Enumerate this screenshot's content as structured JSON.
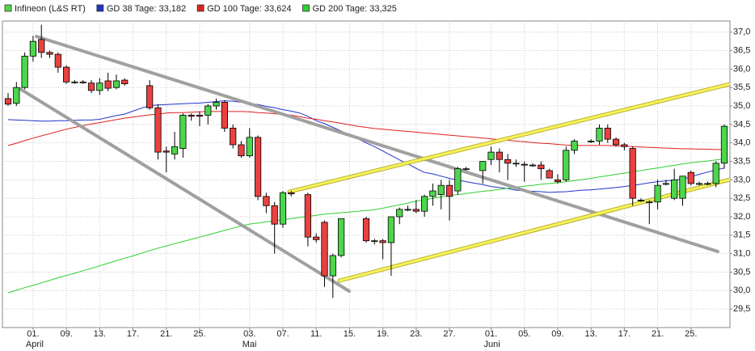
{
  "chart_data": {
    "type": "candlestick",
    "categories": [
      null,
      null,
      null,
      "01.",
      null,
      null,
      null,
      "09.",
      null,
      null,
      null,
      "13.",
      null,
      null,
      null,
      "17.",
      null,
      null,
      null,
      "21.",
      null,
      null,
      null,
      "25.",
      null,
      null,
      null,
      null,
      null,
      "03.",
      null,
      null,
      null,
      "07.",
      null,
      null,
      null,
      "11.",
      null,
      null,
      null,
      "15.",
      null,
      null,
      null,
      "19.",
      null,
      null,
      null,
      "23.",
      null,
      null,
      null,
      "27.",
      null,
      null,
      null,
      null,
      "01.",
      null,
      null,
      null,
      "05.",
      null,
      null,
      null,
      "09.",
      null,
      null,
      null,
      "13.",
      null,
      null,
      null,
      "17.",
      null,
      null,
      null,
      "21.",
      null,
      null,
      null,
      "25.",
      null,
      null,
      null,
      null
    ],
    "month_labels": [
      null,
      null,
      null,
      "April",
      null,
      null,
      null,
      null,
      null,
      null,
      null,
      null,
      null,
      null,
      null,
      null,
      null,
      null,
      null,
      null,
      null,
      null,
      null,
      null,
      null,
      null,
      null,
      null,
      null,
      "Mai",
      null,
      null,
      null,
      null,
      null,
      null,
      null,
      null,
      null,
      null,
      null,
      null,
      null,
      null,
      null,
      null,
      null,
      null,
      null,
      null,
      null,
      null,
      null,
      null,
      null,
      null,
      null,
      null,
      "Juni",
      null,
      null,
      null,
      null,
      null,
      null,
      null,
      null,
      null,
      null,
      null,
      null,
      null,
      null,
      null,
      null,
      null,
      null,
      null,
      null,
      null,
      null,
      null,
      null,
      null,
      null,
      null,
      null
    ],
    "candles": {
      "name": "Infineon (L&S RT)",
      "up_color": "#4cd64c",
      "down_color": "#e8413f",
      "open": [
        35.2,
        35.07,
        35.5,
        36.35,
        36.8,
        36.45,
        36.4,
        36.05,
        35.65,
        35.65,
        35.62,
        35.42,
        35.68,
        35.5,
        35.7,
        null,
        null,
        35.55,
        34.95,
        33.78,
        33.7,
        33.85,
        34.75,
        34.75,
        34.75,
        35.0,
        35.1,
        34.4,
        33.95,
        33.65,
        34.15,
        32.55,
        32.3,
        31.8,
        32.65,
        null,
        32.6,
        31.45,
        31.85,
        30.4,
        30.95,
        null,
        null,
        31.95,
        31.35,
        31.35,
        31.3,
        32.0,
        32.2,
        32.2,
        32.15,
        32.55,
        32.6,
        32.85,
        32.7,
        33.3,
        null,
        33.25,
        33.55,
        33.75,
        33.55,
        33.45,
        33.42,
        33.4,
        33.4,
        33.25,
        33.0,
        33.0,
        33.8,
        null,
        34.05,
        34.05,
        34.4,
        34.1,
        33.95,
        33.85,
        32.45,
        32.4,
        32.4,
        32.9,
        32.5,
        32.5,
        33.2,
        32.9,
        32.9,
        32.9,
        33.45
      ],
      "high": [
        35.35,
        35.65,
        36.45,
        36.9,
        37.2,
        36.5,
        36.45,
        36.1,
        35.7,
        35.7,
        35.7,
        35.75,
        35.9,
        35.85,
        35.75,
        null,
        null,
        35.7,
        35.05,
        33.9,
        34.3,
        34.8,
        34.8,
        34.85,
        35.05,
        35.2,
        35.15,
        34.5,
        34.05,
        34.4,
        34.2,
        32.65,
        32.4,
        32.7,
        32.7,
        null,
        32.65,
        31.55,
        31.9,
        31.0,
        31.95,
        null,
        null,
        32.0,
        31.4,
        31.4,
        32.0,
        32.25,
        32.3,
        32.45,
        32.6,
        32.9,
        33.0,
        33.0,
        33.35,
        33.35,
        null,
        33.5,
        33.9,
        33.85,
        33.7,
        33.55,
        33.5,
        33.45,
        33.5,
        33.3,
        33.15,
        33.9,
        34.1,
        null,
        34.1,
        34.5,
        34.5,
        34.15,
        34.0,
        33.9,
        32.5,
        32.45,
        33.0,
        33.0,
        33.3,
        33.1,
        33.25,
        32.95,
        32.95,
        33.5,
        34.5
      ],
      "low": [
        35.0,
        35.0,
        35.45,
        36.2,
        36.3,
        36.3,
        35.9,
        35.6,
        35.6,
        35.6,
        35.35,
        35.3,
        35.4,
        35.45,
        35.55,
        null,
        null,
        34.9,
        33.55,
        33.2,
        33.55,
        33.6,
        34.6,
        34.45,
        34.5,
        34.9,
        34.3,
        33.85,
        33.6,
        33.6,
        32.45,
        32.1,
        31.0,
        31.7,
        32.55,
        null,
        31.2,
        31.3,
        30.1,
        29.8,
        30.9,
        null,
        null,
        31.3,
        31.25,
        30.85,
        30.4,
        31.8,
        32.15,
        32.1,
        32.0,
        32.3,
        32.2,
        31.9,
        32.6,
        33.25,
        null,
        32.9,
        33.4,
        33.2,
        33.0,
        33.35,
        32.95,
        33.35,
        33.0,
        33.05,
        32.9,
        32.95,
        33.7,
        null,
        34.0,
        33.95,
        34.0,
        33.9,
        33.8,
        32.3,
        32.4,
        31.8,
        32.2,
        32.85,
        32.45,
        32.3,
        32.85,
        32.85,
        32.85,
        32.8,
        33.3
      ],
      "close": [
        35.05,
        35.5,
        36.35,
        36.75,
        36.45,
        36.4,
        36.05,
        35.65,
        35.65,
        35.64,
        35.42,
        35.62,
        35.48,
        35.68,
        35.6,
        null,
        null,
        34.95,
        33.75,
        33.75,
        33.9,
        34.75,
        34.72,
        34.72,
        35.0,
        35.1,
        34.4,
        33.95,
        33.65,
        34.15,
        32.55,
        32.3,
        31.8,
        32.65,
        32.62,
        null,
        31.45,
        31.38,
        30.4,
        30.95,
        31.95,
        null,
        null,
        31.35,
        31.35,
        31.3,
        32.0,
        32.2,
        32.2,
        32.15,
        32.55,
        32.7,
        32.85,
        32.55,
        33.3,
        33.3,
        null,
        33.5,
        33.75,
        33.55,
        33.45,
        33.45,
        33.4,
        33.4,
        33.3,
        33.05,
        32.95,
        33.8,
        34.05,
        null,
        34.05,
        34.4,
        34.1,
        33.95,
        33.9,
        32.5,
        32.45,
        32.4,
        32.85,
        32.9,
        33.0,
        33.1,
        32.9,
        32.9,
        32.9,
        33.45,
        34.45
      ]
    },
    "series": [
      {
        "name": "GD 38 Tage: 33,182",
        "color": "#1f35c9",
        "values": [
          34.63,
          34.62,
          34.61,
          34.6,
          34.59,
          34.59,
          34.6,
          34.6,
          34.61,
          34.62,
          34.62,
          34.64,
          34.69,
          34.74,
          34.78,
          34.86,
          34.94,
          35.01,
          35.03,
          35.04,
          35.05,
          35.06,
          35.07,
          35.08,
          35.1,
          35.12,
          35.14,
          35.13,
          35.1,
          35.07,
          35.04,
          34.99,
          34.95,
          34.9,
          34.86,
          34.81,
          34.72,
          34.6,
          34.52,
          34.42,
          34.32,
          34.22,
          34.11,
          34.0,
          33.9,
          33.78,
          33.66,
          33.54,
          33.43,
          33.31,
          33.2,
          33.16,
          33.1,
          33.04,
          32.99,
          32.95,
          32.91,
          32.87,
          32.82,
          32.79,
          32.76,
          32.72,
          32.7,
          32.69,
          32.68,
          32.66,
          32.67,
          32.68,
          32.7,
          32.72,
          32.73,
          32.75,
          32.77,
          32.79,
          32.82,
          32.85,
          32.88,
          32.92,
          32.95,
          32.97,
          32.99,
          33.02,
          33.08,
          33.15,
          33.21,
          33.27,
          33.32
        ]
      },
      {
        "name": "GD 100 Tage: 33,624",
        "color": "#e02020",
        "values": [
          33.93,
          33.99,
          34.06,
          34.13,
          34.19,
          34.25,
          34.31,
          34.37,
          34.42,
          34.47,
          34.51,
          34.55,
          34.59,
          34.63,
          34.67,
          34.7,
          34.73,
          34.76,
          34.78,
          34.81,
          34.82,
          34.82,
          34.83,
          34.84,
          34.85,
          34.85,
          34.85,
          34.85,
          34.85,
          34.84,
          34.82,
          34.81,
          34.79,
          34.77,
          34.75,
          34.71,
          34.67,
          34.64,
          34.6,
          34.57,
          34.53,
          34.49,
          34.45,
          34.42,
          34.39,
          34.37,
          34.35,
          34.33,
          34.31,
          34.29,
          34.27,
          34.25,
          34.23,
          34.21,
          34.19,
          34.17,
          34.15,
          34.13,
          34.11,
          34.09,
          34.07,
          34.05,
          34.03,
          34.01,
          33.99,
          33.98,
          33.96,
          33.94,
          33.93,
          33.93,
          33.93,
          33.93,
          33.93,
          33.92,
          33.91,
          33.9,
          33.89,
          33.88,
          33.87,
          33.86,
          33.85,
          33.84,
          33.84,
          33.83,
          33.83,
          33.82,
          33.82
        ]
      },
      {
        "name": "GD 200 Tage: 33,325",
        "color": "#2ed12e",
        "values": [
          29.94,
          30.01,
          30.08,
          30.14,
          30.21,
          30.28,
          30.35,
          30.41,
          30.47,
          30.54,
          30.6,
          30.67,
          30.74,
          30.81,
          30.88,
          30.94,
          31.01,
          31.08,
          31.15,
          31.21,
          31.27,
          31.33,
          31.39,
          31.45,
          31.51,
          31.57,
          31.63,
          31.69,
          31.75,
          31.8,
          31.83,
          31.86,
          31.89,
          31.92,
          31.95,
          31.98,
          32.01,
          32.04,
          32.07,
          32.09,
          32.11,
          32.13,
          32.15,
          32.17,
          32.19,
          32.23,
          32.28,
          32.32,
          32.37,
          32.42,
          32.46,
          32.5,
          32.54,
          32.58,
          32.6,
          32.63,
          32.66,
          32.69,
          32.71,
          32.74,
          32.77,
          32.8,
          32.83,
          32.85,
          32.88,
          32.9,
          32.92,
          32.95,
          32.98,
          33.01,
          33.04,
          33.08,
          33.11,
          33.15,
          33.18,
          33.22,
          33.25,
          33.29,
          33.32,
          33.36,
          33.39,
          33.43,
          33.46,
          33.49,
          33.51,
          33.54,
          33.56
        ]
      }
    ],
    "ylim": [
      29.0,
      37.3
    ],
    "yticks": [
      {
        "value": 29.5,
        "label": "29,5"
      },
      {
        "value": 30.0,
        "label": "30,0"
      },
      {
        "value": 30.5,
        "label": "30,5"
      },
      {
        "value": 31.0,
        "label": "31,0"
      },
      {
        "value": 31.5,
        "label": "31,5"
      },
      {
        "value": 32.0,
        "label": "32,0"
      },
      {
        "value": 32.5,
        "label": "32,5"
      },
      {
        "value": 33.0,
        "label": "33,0"
      },
      {
        "value": 33.5,
        "label": "33,5"
      },
      {
        "value": 34.0,
        "label": "34,0"
      },
      {
        "value": 34.5,
        "label": "34,5"
      },
      {
        "value": 35.0,
        "label": "35,0"
      },
      {
        "value": 35.5,
        "label": "35,5"
      },
      {
        "value": 36.0,
        "label": "36,0"
      },
      {
        "value": 36.5,
        "label": "36,5"
      },
      {
        "value": 37.0,
        "label": "37,0"
      }
    ],
    "grid": true
  }
}
